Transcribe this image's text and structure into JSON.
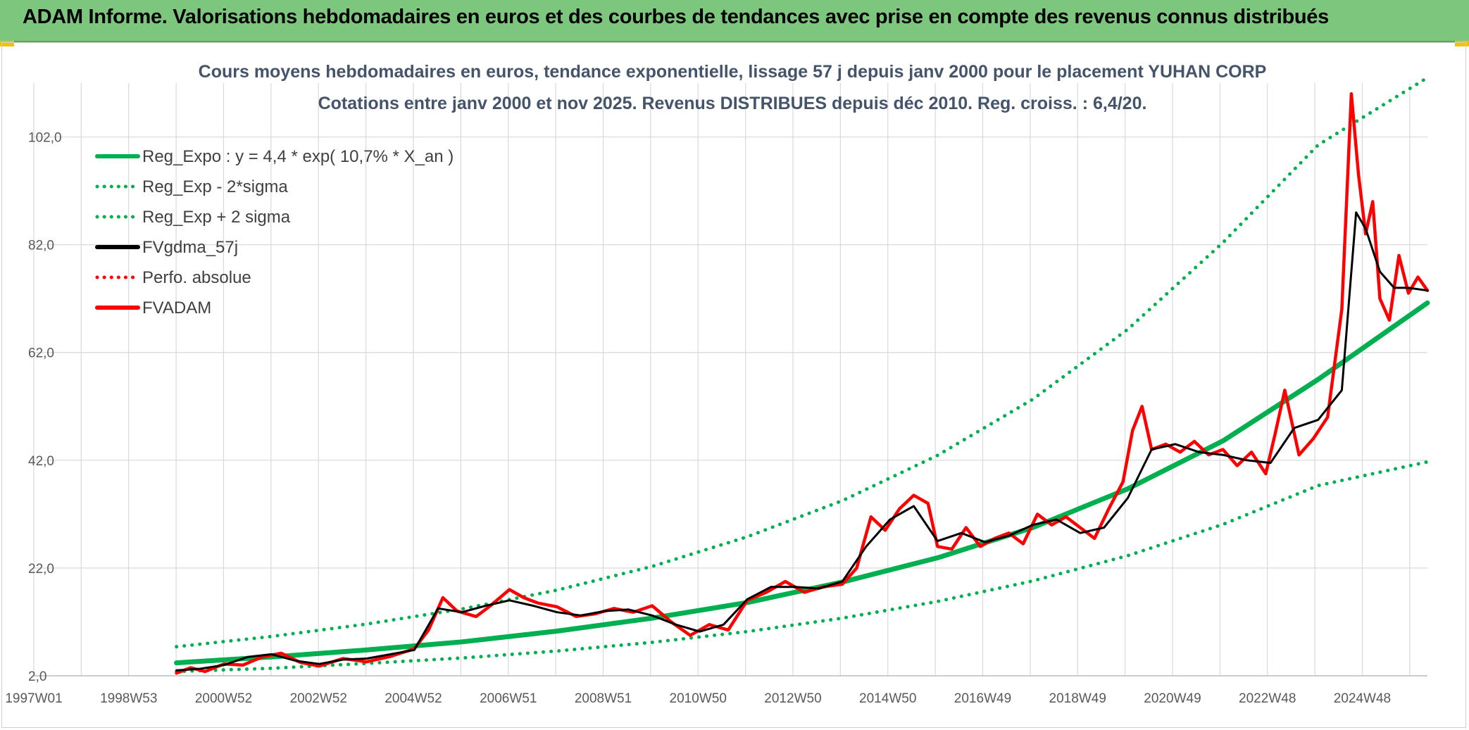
{
  "header": {
    "title": "ADAM Informe. Valorisations hebdomadaires en euros et des courbes de tendances avec prise en compte des revenus connus distribués"
  },
  "chart_data": {
    "type": "line",
    "title": "Cours moyens hebdomadaires en euros, tendance exponentielle, lissage 57 j depuis janv 2000 pour le placement YUHAN CORP",
    "subtitle": "Cotations entre janv 2000 et nov 2025. Revenus DISTRIBUES depuis déc 2010. Reg. croiss. : 6,4/20.",
    "xlabel": "",
    "ylabel": "",
    "x_range": [
      1997.0,
      2026.3
    ],
    "ylim": [
      2,
      112
    ],
    "x_tick_labels": [
      "1997W01",
      "1998W53",
      "2000W52",
      "2002W52",
      "2004W52",
      "2006W51",
      "2008W51",
      "2010W50",
      "2012W50",
      "2014W50",
      "2016W49",
      "2018W49",
      "2020W49",
      "2022W48",
      "2024W48"
    ],
    "y_tick_labels": [
      "2,0",
      "22,0",
      "42,0",
      "62,0",
      "82,0",
      "102,0"
    ],
    "y_ticks": [
      2,
      22,
      42,
      62,
      82,
      102
    ],
    "grid": true,
    "legend_position": "top-left",
    "colors": {
      "green": "#00b050",
      "black": "#000000",
      "red": "#ff0000",
      "grid": "#d9d9d9"
    },
    "series": [
      {
        "name": "Reg_Expo : y = 4,4 * exp( 10,7% *  X_an )",
        "style": "solid",
        "color": "#00b050",
        "width": 7,
        "x": [
          2000.0,
          2002.0,
          2004.0,
          2006.0,
          2008.0,
          2010.0,
          2012.0,
          2014.0,
          2016.0,
          2018.0,
          2020.0,
          2022.0,
          2024.0,
          2026.3
        ],
        "y": [
          4.4,
          5.5,
          6.8,
          8.3,
          10.3,
          12.7,
          15.6,
          19.4,
          23.9,
          29.5,
          36.7,
          45.6,
          57.0,
          71.2
        ]
      },
      {
        "name": "Reg_Exp - 2*sigma",
        "style": "dotted",
        "color": "#00b050",
        "width": 5,
        "x": [
          2000.0,
          2002.0,
          2004.0,
          2006.0,
          2008.0,
          2010.0,
          2012.0,
          2014.0,
          2016.0,
          2018.0,
          2020.0,
          2022.0,
          2024.0,
          2026.3
        ],
        "y": [
          2.8,
          3.4,
          4.3,
          5.3,
          6.6,
          8.2,
          10.2,
          12.7,
          15.8,
          19.6,
          24.3,
          30.1,
          37.3,
          41.7
        ]
      },
      {
        "name": "Reg_Exp + 2 sigma",
        "style": "dotted",
        "color": "#00b050",
        "width": 5,
        "x": [
          2000.0,
          2002.0,
          2004.0,
          2006.0,
          2008.0,
          2010.0,
          2012.0,
          2014.0,
          2016.0,
          2018.0,
          2020.0,
          2022.0,
          2024.0,
          2026.3
        ],
        "y": [
          7.4,
          9.3,
          11.6,
          14.4,
          17.9,
          22.3,
          27.8,
          34.5,
          42.9,
          53.3,
          66.3,
          82.4,
          100.5,
          113.0
        ]
      },
      {
        "name": "FVgdma_57j",
        "style": "solid",
        "color": "#000000",
        "width": 3,
        "x": [
          2000.0,
          2000.5,
          2001.0,
          2001.5,
          2002.0,
          2002.5,
          2003.0,
          2003.5,
          2004.0,
          2004.5,
          2005.0,
          2005.5,
          2006.0,
          2006.5,
          2007.0,
          2007.5,
          2008.0,
          2008.5,
          2009.0,
          2009.5,
          2010.0,
          2010.5,
          2011.0,
          2011.5,
          2012.0,
          2012.5,
          2013.0,
          2013.5,
          2014.0,
          2014.5,
          2015.0,
          2015.5,
          2016.0,
          2016.5,
          2017.0,
          2017.5,
          2018.0,
          2018.5,
          2019.0,
          2019.5,
          2020.0,
          2020.5,
          2021.0,
          2021.5,
          2022.0,
          2022.5,
          2023.0,
          2023.5,
          2024.0,
          2024.5,
          2024.8,
          2025.0,
          2025.3,
          2025.6,
          2025.9,
          2026.3
        ],
        "y": [
          3.0,
          3.3,
          4.0,
          5.5,
          6.0,
          4.8,
          4.2,
          5.0,
          5.2,
          6.0,
          6.8,
          14.5,
          13.8,
          15.0,
          16.0,
          15.0,
          13.8,
          13.2,
          14.0,
          14.3,
          13.2,
          11.5,
          10.2,
          11.5,
          16.2,
          18.5,
          18.5,
          18.2,
          19.5,
          26.0,
          31.0,
          33.5,
          27.0,
          28.5,
          26.8,
          28.0,
          30.0,
          31.0,
          28.5,
          29.5,
          35.0,
          44.0,
          45.0,
          43.5,
          43.0,
          42.0,
          41.5,
          48.0,
          49.5,
          55.0,
          88.0,
          85.0,
          77.0,
          74.0,
          74.0,
          73.5
        ]
      },
      {
        "name": "Perfo. absolue",
        "style": "dotted",
        "color": "#ff0000",
        "width": 3,
        "x": [],
        "y": []
      },
      {
        "name": "FVADAM",
        "style": "solid",
        "color": "#ff0000",
        "width": 4.5,
        "x": [
          2000.0,
          2000.3,
          2000.6,
          2001.0,
          2001.4,
          2001.8,
          2002.2,
          2002.6,
          2003.0,
          2003.5,
          2004.0,
          2004.5,
          2005.0,
          2005.3,
          2005.6,
          2005.9,
          2006.3,
          2006.6,
          2007.0,
          2007.3,
          2007.6,
          2008.0,
          2008.4,
          2008.8,
          2009.2,
          2009.6,
          2010.0,
          2010.4,
          2010.8,
          2011.2,
          2011.6,
          2012.0,
          2012.4,
          2012.8,
          2013.2,
          2013.6,
          2014.0,
          2014.3,
          2014.6,
          2014.9,
          2015.2,
          2015.5,
          2015.8,
          2016.0,
          2016.3,
          2016.6,
          2016.9,
          2017.2,
          2017.5,
          2017.8,
          2018.1,
          2018.4,
          2018.7,
          2019.0,
          2019.3,
          2019.6,
          2019.9,
          2020.1,
          2020.3,
          2020.5,
          2020.8,
          2021.1,
          2021.4,
          2021.7,
          2022.0,
          2022.3,
          2022.6,
          2022.9,
          2023.1,
          2023.3,
          2023.6,
          2023.9,
          2024.2,
          2024.5,
          2024.7,
          2024.85,
          2025.0,
          2025.15,
          2025.3,
          2025.5,
          2025.7,
          2025.9,
          2026.1,
          2026.3
        ],
        "y": [
          2.5,
          3.5,
          2.8,
          4.2,
          4.0,
          5.5,
          6.2,
          4.5,
          3.8,
          5.2,
          4.6,
          5.6,
          7.0,
          10.5,
          16.5,
          14.0,
          13.0,
          15.0,
          18.0,
          16.5,
          15.5,
          14.8,
          13.0,
          13.5,
          14.5,
          13.8,
          15.0,
          12.0,
          9.5,
          11.5,
          10.5,
          16.0,
          17.5,
          19.5,
          17.5,
          18.5,
          19.0,
          22.0,
          31.5,
          29.0,
          33.0,
          35.5,
          34.0,
          26.0,
          25.5,
          29.5,
          26.0,
          27.5,
          28.5,
          26.5,
          32.0,
          30.0,
          31.5,
          29.5,
          27.5,
          33.0,
          38.0,
          47.5,
          52.0,
          44.0,
          45.0,
          43.5,
          45.5,
          43.0,
          44.0,
          41.0,
          43.5,
          39.5,
          47.0,
          55.0,
          43.0,
          46.0,
          50.0,
          70.0,
          110.0,
          95.0,
          84.0,
          90.0,
          72.0,
          68.0,
          80.0,
          73.0,
          76.0,
          73.5
        ]
      }
    ]
  }
}
